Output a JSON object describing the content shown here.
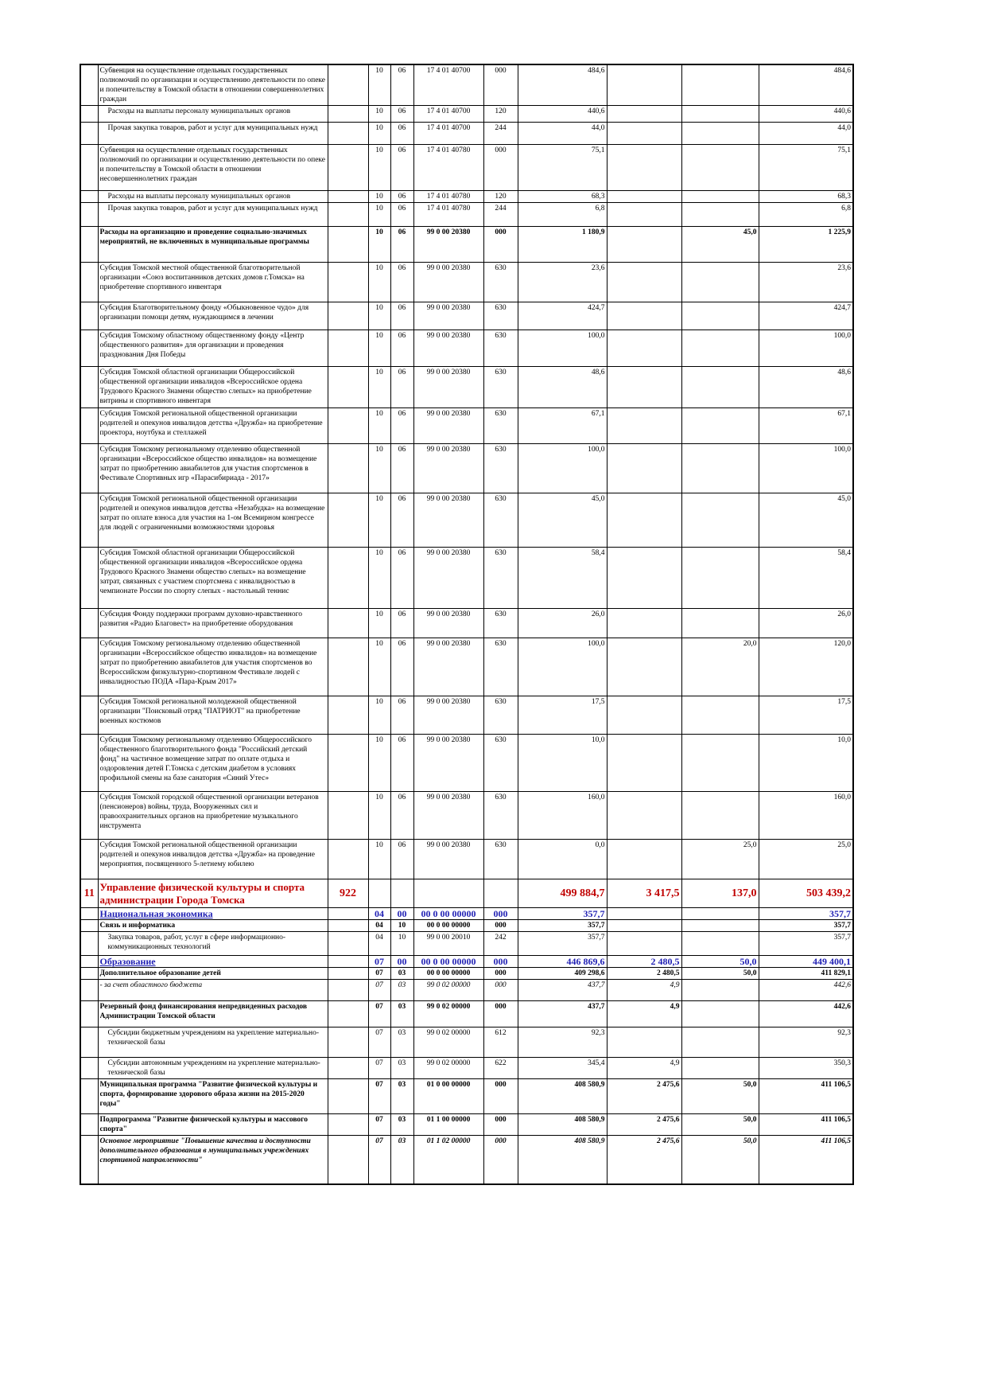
{
  "table": {
    "rows": [
      {
        "name": "Субвенция на осуществление отдельных государственных полномочий по организации и осуществлению деятельности по опеке и попечительству в Томской области в отношении совершеннолетних граждан",
        "rz": "10",
        "pr": "06",
        "csr": "17 4 01 40700",
        "vr": "000",
        "v1": "484,6",
        "total": "484,6"
      },
      {
        "name": "Расходы на выплаты персоналу муниципальных органов",
        "rz": "10",
        "pr": "06",
        "csr": "17 4 01 40700",
        "vr": "120",
        "v1": "440,6",
        "total": "440,6",
        "style": "indent"
      },
      {
        "name": "Прочая закупка товаров, работ и услуг для муниципальных нужд",
        "rz": "10",
        "pr": "06",
        "csr": "17 4 01 40700",
        "vr": "244",
        "v1": "44,0",
        "total": "44,0",
        "style": "indent"
      },
      {
        "name": "Субвенция на осуществление отдельных государственных полномочий по организации и осуществлению деятельности по опеке и попечительству в Томской области в отношении несовершеннолетних граждан",
        "rz": "10",
        "pr": "06",
        "csr": "17 4 01 40780",
        "vr": "000",
        "v1": "75,1",
        "total": "75,1"
      },
      {
        "name": "Расходы на выплаты персоналу муниципальных органов",
        "rz": "10",
        "pr": "06",
        "csr": "17 4 01 40780",
        "vr": "120",
        "v1": "68,3",
        "total": "68,3",
        "style": "indent"
      },
      {
        "name": "Прочая закупка товаров, работ и услуг для муниципальных нужд",
        "rz": "10",
        "pr": "06",
        "csr": "17 4 01 40780",
        "vr": "244",
        "v1": "6,8",
        "total": "6,8",
        "style": "indent"
      },
      {
        "name": "Расходы на организацию и проведение социально-значимых мероприятий, не включенных в муниципальные программы",
        "rz": "10",
        "pr": "06",
        "csr": "99 0 00 20380",
        "vr": "000",
        "v1": "1 180,9",
        "v3": "45,0",
        "total": "1 225,9",
        "style": "bold"
      },
      {
        "name": "Субсидия Томской местной общественной благотворительной организации «Союз воспитанников детских домов г.Томска» на приобретение спортивного инвентаря",
        "rz": "10",
        "pr": "06",
        "csr": "99 0 00 20380",
        "vr": "630",
        "v1": "23,6",
        "total": "23,6"
      },
      {
        "name": "Субсидия Благотворительному фонду «Обыкновенное чудо» для организации помощи детям, нуждающимся в лечении",
        "rz": "10",
        "pr": "06",
        "csr": "99 0 00 20380",
        "vr": "630",
        "v1": "424,7",
        "total": "424,7"
      },
      {
        "name": "Субсидия Томскому областному общественному фонду «Центр общественного развития» для организации и проведения празднования Дня Победы",
        "rz": "10",
        "pr": "06",
        "csr": "99 0 00 20380",
        "vr": "630",
        "v1": "100,0",
        "total": "100,0"
      },
      {
        "name": "Субсидия Томской областной организации Общероссийской общественной организации инвалидов «Всероссийское ордена Трудового Красного Знамени общество слепых» на приобретение витрины и спортивного инвентаря",
        "rz": "10",
        "pr": "06",
        "csr": "99 0 00 20380",
        "vr": "630",
        "v1": "48,6",
        "total": "48,6"
      },
      {
        "name": "Субсидия Томской региональной общественной организации родителей и опекунов инвалидов детства «Дружба» на приобретение проектора, ноутбука и стеллажей",
        "rz": "10",
        "pr": "06",
        "csr": "99 0 00 20380",
        "vr": "630",
        "v1": "67,1",
        "total": "67,1"
      },
      {
        "name": "Субсидия Томскому региональному отделению общественной организации «Всероссийское общество инвалидов» на возмещение затрат по приобретению авиабилетов для участия спортсменов в Фестивале Спортивных игр «Парасибириада - 2017»",
        "rz": "10",
        "pr": "06",
        "csr": "99 0 00 20380",
        "vr": "630",
        "v1": "100,0",
        "total": "100,0"
      },
      {
        "name": "Субсидия Томской региональной общественной организации родителей и опекунов инвалидов детства «Незабудка» на возмещение затрат по оплате взноса для участия на 1-ом Всемирном конгрессе для людей с ограниченными возможностями здоровья",
        "rz": "10",
        "pr": "06",
        "csr": "99 0 00 20380",
        "vr": "630",
        "v1": "45,0",
        "total": "45,0"
      },
      {
        "name": "Субсидия Томской областной организации Общероссийской общественной организации инвалидов «Всероссийское ордена Трудового Красного Знамени общество слепых» на возмещение затрат, связанных с участием спортсмена с инвалидностью в чемпионате России по спорту слепых - настольный теннис",
        "rz": "10",
        "pr": "06",
        "csr": "99 0 00 20380",
        "vr": "630",
        "v1": "58,4",
        "total": "58,4"
      },
      {
        "name": "Субсидия Фонду поддержки программ духовно-нравственного развития «Радио Благовест» на приобретение оборудования",
        "rz": "10",
        "pr": "06",
        "csr": "99 0 00 20380",
        "vr": "630",
        "v1": "26,0",
        "total": "26,0"
      },
      {
        "name": "Субсидия Томскому региональному отделению общественной организации «Всероссийское общество инвалидов» на возмещение затрат по приобретению авиабилетов для участия спортсменов во Всероссийском физкультурно-спортивном Фестивале людей с инвалидностью ПОДА «Пара-Крым 2017»",
        "rz": "10",
        "pr": "06",
        "csr": "99 0 00 20380",
        "vr": "630",
        "v1": "100,0",
        "v3": "20,0",
        "total": "120,0"
      },
      {
        "name": "Субсидия Томской региональной молодежной общественной организации \"Поисковый отряд \"ПАТРИОТ\" на приобретение военных костюмов",
        "rz": "10",
        "pr": "06",
        "csr": "99 0 00 20380",
        "vr": "630",
        "v1": "17,5",
        "total": "17,5"
      },
      {
        "name": "Субсидия Томскому региональному отделению Общероссийского общественного благотворительного фонда \"Российский детский фонд\" на частичное возмещение затрат по оплате отдыха и оздоровления детей Г.Томска с детским диабетом в условиях профильной смены на базе санатория «Синий Утес»",
        "rz": "10",
        "pr": "06",
        "csr": "99 0 00 20380",
        "vr": "630",
        "v1": "10,0",
        "total": "10,0"
      },
      {
        "name": "Субсидия Томской городской общественной организации ветеранов (пенсионеров) войны, труда, Вооруженных сил и правоохранительных органов на приобретение музыкального инструмента",
        "rz": "10",
        "pr": "06",
        "csr": "99 0 00 20380",
        "vr": "630",
        "v1": "160,0",
        "total": "160,0"
      },
      {
        "name": "Субсидия Томской региональной общественной организации родителей и опекунов инвалидов детства «Дружба» на проведение мероприятия, посвященного 5-летнему юбилею",
        "rz": "10",
        "pr": "06",
        "csr": "99 0 00 20380",
        "vr": "630",
        "v1": "0,0",
        "v3": "25,0",
        "total": "25,0"
      },
      {
        "num": "11",
        "name": "Управление физической культуры и спорта администрации Города Томска",
        "admin": "922",
        "v1": "499 884,7",
        "v2": "3 417,5",
        "v3": "137,0",
        "total": "503 439,2",
        "style": "red"
      },
      {
        "name": "Национальная экономика",
        "rz": "04",
        "pr": "00",
        "csr": "00 0 00 00000",
        "vr": "000",
        "v1": "357,7",
        "total": "357,7",
        "style": "blue"
      },
      {
        "name": "Связь и информатика",
        "rz": "04",
        "pr": "10",
        "csr": "00 0 00 00000",
        "vr": "000",
        "v1": "357,7",
        "total": "357,7",
        "style": "bold"
      },
      {
        "name": "Закупка товаров, работ, услуг в сфере информационно-коммуникационных технологий",
        "rz": "04",
        "pr": "10",
        "csr": "99 0 00 20010",
        "vr": "242",
        "v1": "357,7",
        "total": "357,7",
        "style": "indent"
      },
      {
        "name": "Образование",
        "rz": "07",
        "pr": "00",
        "csr": "00 0 00 00000",
        "vr": "000",
        "v1": "446 869,6",
        "v2": "2 480,5",
        "v3": "50,0",
        "total": "449 400,1",
        "style": "blue"
      },
      {
        "name": "Дополнительное образование детей",
        "rz": "07",
        "pr": "03",
        "csr": "00 0 00 00000",
        "vr": "000",
        "v1": "409 298,6",
        "v2": "2 480,5",
        "v3": "50,0",
        "total": "411 829,1",
        "style": "bold"
      },
      {
        "name": "- за счет областного бюджета",
        "rz": "07",
        "pr": "03",
        "csr": "99 0 02 00000",
        "vr": "000",
        "v1": "437,7",
        "v2": "4,9",
        "total": "442,6",
        "style": "italic"
      },
      {
        "name": "Резервный фонд финансирования непредвиденных расходов Администрации Томской области",
        "rz": "07",
        "pr": "03",
        "csr": "99 0 02 00000",
        "vr": "000",
        "v1": "437,7",
        "v2": "4,9",
        "total": "442,6",
        "style": "bold"
      },
      {
        "name": "Субсидии бюджетным учреждениям на укрепление материально-технической базы",
        "rz": "07",
        "pr": "03",
        "csr": "99 0 02 00000",
        "vr": "612",
        "v1": "92,3",
        "total": "92,3",
        "style": "indent"
      },
      {
        "name": "Субсидии автономным учреждениям на укрепление материально-технической базы",
        "rz": "07",
        "pr": "03",
        "csr": "99 0 02 00000",
        "vr": "622",
        "v1": "345,4",
        "v2": "4,9",
        "total": "350,3",
        "style": "indent"
      },
      {
        "name": "Муниципальная программа \"Развитие физической культуры и спорта, формирование здорового образа жизни на 2015-2020 годы\"",
        "rz": "07",
        "pr": "03",
        "csr": "01 0 00 00000",
        "vr": "000",
        "v1": "408 580,9",
        "v2": "2 475,6",
        "v3": "50,0",
        "total": "411 106,5",
        "style": "bold"
      },
      {
        "name": "Подпрограмма \"Развитие физической культуры и массового спорта\"",
        "rz": "07",
        "pr": "03",
        "csr": "01 1 00 00000",
        "vr": "000",
        "v1": "408 580,9",
        "v2": "2 475,6",
        "v3": "50,0",
        "total": "411 106,5",
        "style": "bold"
      },
      {
        "name": "Основное мероприятие \"Повышение качества и доступности дополнительного образования в муниципальных учреждениях спортивной направленности\"",
        "rz": "07",
        "pr": "03",
        "csr": "01 1 02 00000",
        "vr": "000",
        "v1": "408 580,9",
        "v2": "2 475,6",
        "v3": "50,0",
        "total": "411 106,5",
        "style": "bold-italic"
      }
    ]
  }
}
